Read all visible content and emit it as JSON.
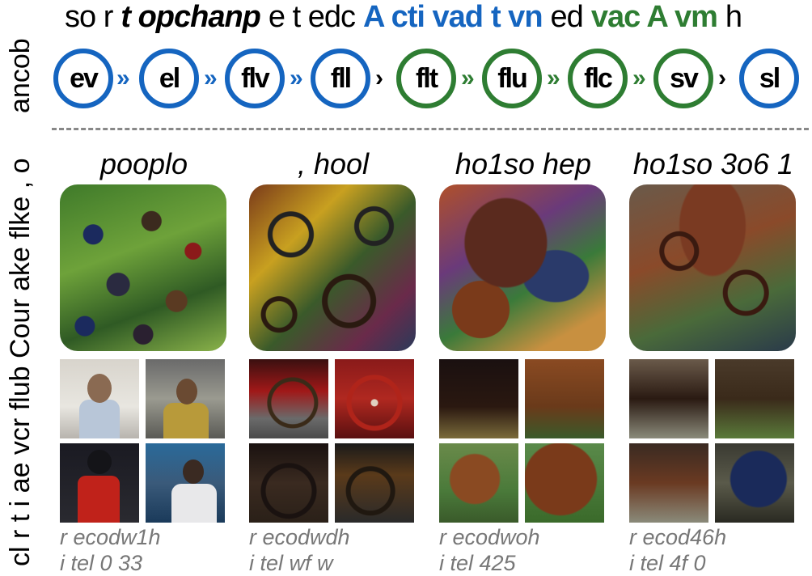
{
  "legend": {
    "parts": [
      {
        "text": "so r",
        "style": "plain"
      },
      {
        "text": "t opchanp",
        "style": "bold-italic"
      },
      {
        "text": "e t edc",
        "style": "plain"
      },
      {
        "text": "A cti vad",
        "style": "blue"
      },
      {
        "text": "t vn",
        "style": "blue"
      },
      {
        "text": "ed",
        "style": "plain"
      },
      {
        "text": "vac A vm",
        "style": "green"
      },
      {
        "text": "h",
        "style": "plain"
      }
    ]
  },
  "side_labels": {
    "top": "ancob",
    "bottom": "cl r t  i ae  vcr flub  Cour ake flke ,  o"
  },
  "colors": {
    "blue": "#1565c0",
    "green": "#2e7d32",
    "meta_gray": "#777777",
    "divider": "#888888"
  },
  "chain": {
    "nodes": [
      {
        "label": "ev",
        "color": "blue"
      },
      {
        "label": "el",
        "color": "blue"
      },
      {
        "label": "flv",
        "color": "blue"
      },
      {
        "label": "fll",
        "color": "blue"
      },
      {
        "label": "flt",
        "color": "green"
      },
      {
        "label": "flu",
        "color": "green"
      },
      {
        "label": "flc",
        "color": "green"
      },
      {
        "label": "sv",
        "color": "green"
      },
      {
        "label": "sl",
        "color": "blue"
      }
    ],
    "arrows": [
      {
        "symbol": "»",
        "color": "blue"
      },
      {
        "symbol": "»",
        "color": "blue"
      },
      {
        "symbol": "»",
        "color": "blue"
      },
      {
        "symbol": "›",
        "color": "black"
      },
      {
        "symbol": "»",
        "color": "green"
      },
      {
        "symbol": "»",
        "color": "green"
      },
      {
        "symbol": "»",
        "color": "green"
      },
      {
        "symbol": "›",
        "color": "black"
      }
    ]
  },
  "columns": [
    {
      "title": "pooplo",
      "meta_line1": "r ecodw1h",
      "meta_line2": "i tel 0 33"
    },
    {
      "title": ", hool",
      "meta_line1": "r ecodwdh",
      "meta_line2": "i tel wf w"
    },
    {
      "title": "ho1so hep",
      "meta_line1": "r ecodwoh",
      "meta_line2": "i tel 425"
    },
    {
      "title": "ho1so 3o6 1",
      "meta_line1": "r ecod46h",
      "meta_line2": "i tel 4f 0"
    }
  ]
}
